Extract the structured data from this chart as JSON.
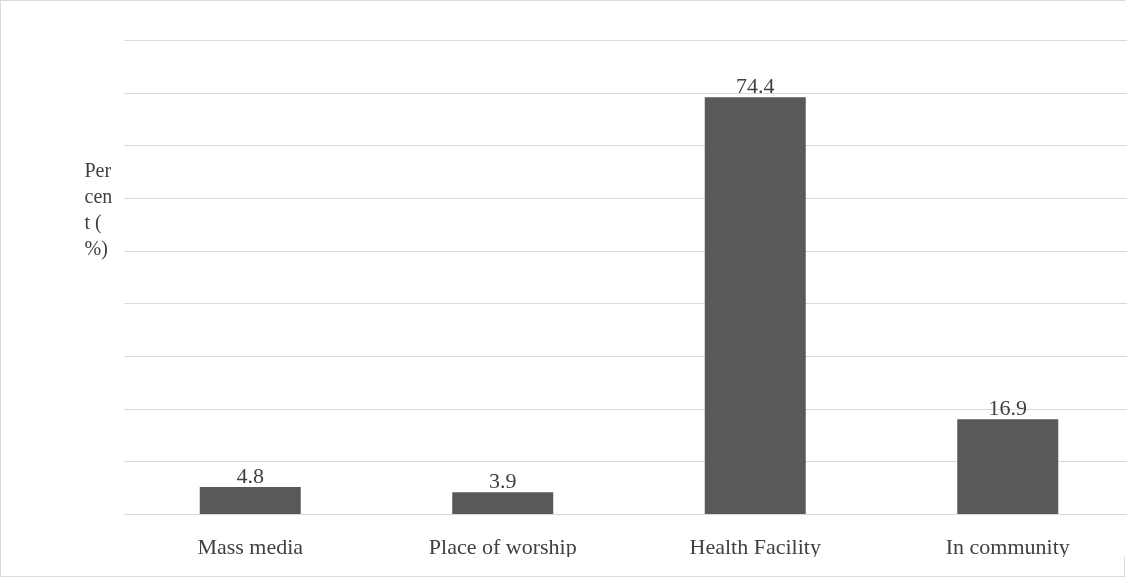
{
  "chart_data": {
    "type": "bar",
    "ylabel": "Percent (%)",
    "categories": [
      "Mass media",
      "Place of worship",
      "Health Facility",
      "In community"
    ],
    "values": [
      4.8,
      3.9,
      74.4,
      16.9
    ],
    "color": "#595959",
    "ylim": [
      0,
      84.6
    ],
    "yticks": [
      {
        "value": 0,
        "label": null
      },
      {
        "value": 9.4,
        "label": null
      },
      {
        "value": 18.8,
        "label": null
      },
      {
        "value": 28.2,
        "label": null
      },
      {
        "value": 37.6,
        "label": null
      },
      {
        "value": 47,
        "label": null
      },
      {
        "value": 56.4,
        "label": null
      },
      {
        "value": 65.8,
        "label": null
      },
      {
        "value": 75.2,
        "label": null
      },
      {
        "value": 84.6,
        "label": null
      }
    ],
    "grid": "y",
    "data_labels": true,
    "tick_labels": "x"
  }
}
